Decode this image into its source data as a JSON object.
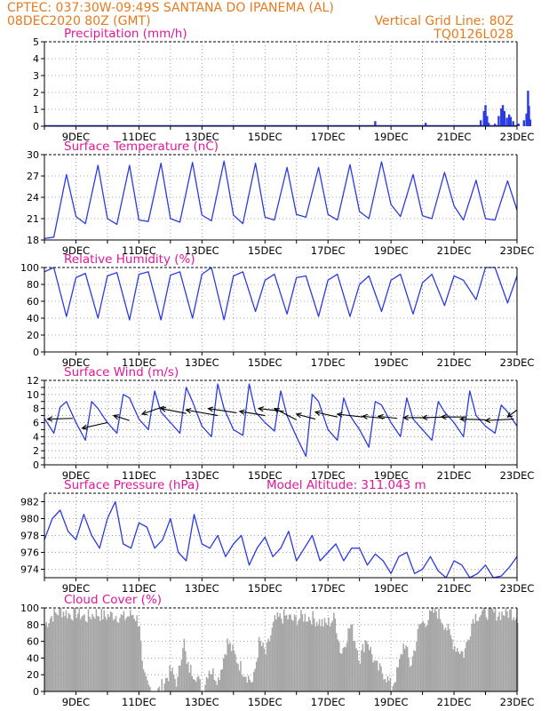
{
  "header": {
    "line1": "CPTEC:   037:30W-09:49S   SANTANA DO IPANEMA (AL)",
    "line2_left": "08DEC2020 80Z (GMT)",
    "line2_right": "Vertical Grid Line: 80Z",
    "line3_right": "TQ0126L028"
  },
  "colors": {
    "header": "#e87a1e",
    "title": "#e0179a",
    "series": "#2a3be0",
    "precip_bar": "#2a3be0",
    "cloud_bar": "#a6a6a6",
    "wind_arrow": "#000000",
    "grid": "#8c8c8c"
  },
  "chart_data": [
    {
      "id": "precip",
      "type": "bar",
      "title": "Precipitation (mm/h)",
      "ylabel": "mm/h",
      "ylim": [
        0,
        5
      ],
      "yticks": [
        "0",
        "1",
        "2",
        "3",
        "4",
        "5"
      ],
      "xlabels": [
        "9DEC",
        "11DEC",
        "13DEC",
        "15DEC",
        "17DEC",
        "19DEC",
        "21DEC",
        "23DEC"
      ],
      "xlim_days": [
        0,
        15
      ],
      "bars": [
        [
          10.5,
          0.3
        ],
        [
          12.1,
          0.2
        ],
        [
          13.85,
          0.35
        ],
        [
          13.95,
          0.9
        ],
        [
          14.0,
          1.25
        ],
        [
          14.05,
          0.6
        ],
        [
          14.1,
          0.2
        ],
        [
          14.3,
          0.15
        ],
        [
          14.42,
          0.6
        ],
        [
          14.5,
          1.05
        ],
        [
          14.55,
          1.25
        ],
        [
          14.6,
          0.9
        ],
        [
          14.68,
          0.5
        ],
        [
          14.75,
          0.7
        ],
        [
          14.8,
          0.55
        ],
        [
          14.88,
          0.3
        ],
        [
          15.05,
          0.15
        ],
        [
          15.22,
          0.35
        ],
        [
          15.3,
          0.75
        ],
        [
          15.35,
          2.1
        ],
        [
          15.38,
          1.2
        ],
        [
          15.42,
          0.4
        ]
      ]
    },
    {
      "id": "temperature",
      "type": "line",
      "title": "Surface Temperature (nC)",
      "ylim": [
        18,
        30
      ],
      "yticks": [
        "18",
        "21",
        "24",
        "27",
        "30"
      ],
      "xlabels": [
        "9DEC",
        "11DEC",
        "13DEC",
        "15DEC",
        "17DEC",
        "19DEC",
        "21DEC",
        "23DEC"
      ],
      "xlim_days": [
        0,
        15
      ],
      "series": [
        {
          "name": "temperature",
          "x": [
            0,
            0.3,
            0.7,
            1.0,
            1.3,
            1.7,
            2.0,
            2.3,
            2.7,
            3.0,
            3.3,
            3.7,
            4.0,
            4.3,
            4.7,
            5.0,
            5.3,
            5.7,
            6.0,
            6.3,
            6.7,
            7.0,
            7.3,
            7.7,
            8.0,
            8.3,
            8.7,
            9.0,
            9.3,
            9.7,
            10.0,
            10.3,
            10.7,
            11.0,
            11.3,
            11.7,
            12.0,
            12.3,
            12.7,
            13.0,
            13.3,
            13.7,
            14.0,
            14.3,
            14.7,
            15.0
          ],
          "y": [
            18.2,
            18.4,
            27.2,
            21.3,
            20.3,
            28.5,
            21.0,
            20.2,
            28.5,
            20.8,
            20.6,
            28.8,
            21.0,
            20.5,
            28.9,
            21.5,
            20.7,
            29.1,
            21.5,
            20.3,
            28.8,
            21.2,
            20.8,
            28.2,
            21.6,
            21.2,
            28.2,
            21.6,
            20.8,
            28.6,
            22.0,
            21.0,
            29.0,
            23.0,
            21.3,
            27.2,
            21.4,
            21.0,
            27.5,
            22.8,
            20.8,
            26.4,
            21.0,
            20.8,
            26.3,
            22.2
          ]
        }
      ]
    },
    {
      "id": "humidity",
      "type": "line",
      "title": "Relative Humidity (%)",
      "ylim": [
        0,
        100
      ],
      "yticks": [
        "0",
        "20",
        "40",
        "60",
        "80",
        "100"
      ],
      "xlabels": [
        "9DEC",
        "11DEC",
        "13DEC",
        "15DEC",
        "17DEC",
        "19DEC",
        "21DEC",
        "23DEC"
      ],
      "xlim_days": [
        0,
        15
      ],
      "series": [
        {
          "name": "humidity",
          "x": [
            0,
            0.3,
            0.7,
            1.0,
            1.3,
            1.7,
            2.0,
            2.3,
            2.7,
            3.0,
            3.3,
            3.7,
            4.0,
            4.3,
            4.7,
            5.0,
            5.3,
            5.7,
            6.0,
            6.3,
            6.7,
            7.0,
            7.3,
            7.7,
            8.0,
            8.3,
            8.7,
            9.0,
            9.3,
            9.7,
            10.0,
            10.3,
            10.7,
            11.0,
            11.3,
            11.7,
            12.0,
            12.3,
            12.7,
            13.0,
            13.3,
            13.7,
            14.0,
            14.3,
            14.7,
            15.0
          ],
          "y": [
            95,
            100,
            42,
            88,
            93,
            40,
            90,
            94,
            38,
            92,
            95,
            38,
            91,
            95,
            40,
            92,
            100,
            38,
            90,
            95,
            48,
            85,
            92,
            45,
            88,
            90,
            42,
            85,
            92,
            42,
            80,
            90,
            48,
            85,
            92,
            45,
            82,
            92,
            55,
            90,
            85,
            62,
            100,
            100,
            58,
            90
          ]
        }
      ]
    },
    {
      "id": "wind",
      "type": "line",
      "title": "Surface Wind (m/s)",
      "ylim": [
        0,
        12
      ],
      "yticks": [
        "0",
        "1",
        "2",
        "3",
        "4",
        "5",
        "6",
        "7",
        "8",
        "9",
        "10",
        "11",
        "12"
      ],
      "ytick_labels_shown": [
        "0",
        "2",
        "4",
        "6",
        "8",
        "10",
        "12"
      ],
      "xlabels": [
        "9DEC",
        "11DEC",
        "13DEC",
        "15DEC",
        "17DEC",
        "19DEC",
        "21DEC",
        "23DEC"
      ],
      "xlim_days": [
        0,
        15
      ],
      "series": [
        {
          "name": "wind speed",
          "x": [
            0,
            0.3,
            0.5,
            0.7,
            1.0,
            1.3,
            1.5,
            1.7,
            2.0,
            2.3,
            2.5,
            2.7,
            3.0,
            3.3,
            3.5,
            3.7,
            4.0,
            4.3,
            4.5,
            4.7,
            5.0,
            5.3,
            5.5,
            5.7,
            6.0,
            6.3,
            6.5,
            6.7,
            7.0,
            7.3,
            7.5,
            7.7,
            8.0,
            8.3,
            8.5,
            8.7,
            9.0,
            9.3,
            9.5,
            9.7,
            10.0,
            10.3,
            10.5,
            10.7,
            11.0,
            11.3,
            11.5,
            11.7,
            12.0,
            12.3,
            12.5,
            12.7,
            13.0,
            13.3,
            13.5,
            13.7,
            14.0,
            14.3,
            14.5,
            14.7,
            15.0
          ],
          "y": [
            6.6,
            4.5,
            8.2,
            9.0,
            6.0,
            3.5,
            9.0,
            8.0,
            6.0,
            4.5,
            10.0,
            9.5,
            6.5,
            5.0,
            10.5,
            7.5,
            6.0,
            4.5,
            11.0,
            9.0,
            5.5,
            4.0,
            11.5,
            8.0,
            5.0,
            4.2,
            11.5,
            7.5,
            6.0,
            4.8,
            10.5,
            7.0,
            4.0,
            1.2,
            10.0,
            9.0,
            5.0,
            3.5,
            9.5,
            7.0,
            5.0,
            2.5,
            9.0,
            8.5,
            6.0,
            4.0,
            9.5,
            6.5,
            5.0,
            3.5,
            9.0,
            7.5,
            6.0,
            4.0,
            10.5,
            7.0,
            5.5,
            4.5,
            8.5,
            7.5,
            5.5
          ]
        }
      ],
      "wind_arrows": [
        [
          0.1,
          6.5,
          0.9,
          6.6
        ],
        [
          1.2,
          5.2,
          2.0,
          6.0
        ],
        [
          2.2,
          7.0,
          2.7,
          6.3
        ],
        [
          3.1,
          7.2,
          3.8,
          8.3
        ],
        [
          3.7,
          8.0,
          4.5,
          7.3
        ],
        [
          4.5,
          7.8,
          5.5,
          7.0
        ],
        [
          5.2,
          8.0,
          6.1,
          7.4
        ],
        [
          6.2,
          7.6,
          7.0,
          7.0
        ],
        [
          6.8,
          8.0,
          7.6,
          7.6
        ],
        [
          7.3,
          8.0,
          8.0,
          6.4
        ],
        [
          8.0,
          7.2,
          8.6,
          6.5
        ],
        [
          8.6,
          7.5,
          9.3,
          6.8
        ],
        [
          9.3,
          7.2,
          10.1,
          6.8
        ],
        [
          10.1,
          6.9,
          10.8,
          6.6
        ],
        [
          10.6,
          6.9,
          11.2,
          6.6
        ],
        [
          11.4,
          6.7,
          12.2,
          6.7
        ],
        [
          12.0,
          6.7,
          12.8,
          6.8
        ],
        [
          12.6,
          6.8,
          13.4,
          6.8
        ],
        [
          13.2,
          6.5,
          14.0,
          6.4
        ],
        [
          14.0,
          6.3,
          14.9,
          6.5
        ],
        [
          14.7,
          6.8,
          15.0,
          7.8
        ]
      ]
    },
    {
      "id": "pressure",
      "type": "line",
      "title": "Surface Pressure (hPa)",
      "subtitle": "Model Altitude: 311.043 m",
      "ylim": [
        973,
        983
      ],
      "yticks": [
        "974",
        "976",
        "978",
        "980",
        "982"
      ],
      "xlabels": [
        "9DEC",
        "11DEC",
        "13DEC",
        "15DEC",
        "17DEC",
        "19DEC",
        "21DEC",
        "23DEC"
      ],
      "xlim_days": [
        0,
        15
      ],
      "series": [
        {
          "name": "pressure",
          "x": [
            0,
            0.25,
            0.5,
            0.75,
            1.0,
            1.25,
            1.5,
            1.75,
            2.0,
            2.25,
            2.5,
            2.75,
            3.0,
            3.25,
            3.5,
            3.75,
            4.0,
            4.25,
            4.5,
            4.75,
            5.0,
            5.25,
            5.5,
            5.75,
            6.0,
            6.25,
            6.5,
            6.75,
            7.0,
            7.25,
            7.5,
            7.75,
            8.0,
            8.25,
            8.5,
            8.75,
            9.0,
            9.25,
            9.5,
            9.75,
            10.0,
            10.25,
            10.5,
            10.75,
            11.0,
            11.25,
            11.5,
            11.75,
            12.0,
            12.25,
            12.5,
            12.75,
            13.0,
            13.25,
            13.5,
            13.75,
            14.0,
            14.25,
            14.5,
            14.75,
            15.0
          ],
          "y": [
            977.5,
            980.0,
            981.0,
            978.5,
            977.5,
            980.5,
            978.0,
            976.5,
            980.0,
            982.0,
            977.0,
            976.5,
            979.5,
            979.0,
            976.5,
            977.5,
            980.0,
            976.0,
            975.0,
            980.5,
            977.0,
            976.5,
            978.0,
            975.5,
            977.0,
            978.0,
            974.5,
            976.5,
            977.8,
            975.5,
            976.5,
            978.5,
            975.0,
            976.5,
            978.0,
            975.0,
            976.0,
            977.0,
            975.0,
            976.5,
            976.5,
            974.5,
            975.8,
            975.0,
            973.5,
            975.5,
            976.0,
            973.5,
            974.0,
            975.5,
            973.8,
            973.0,
            975.0,
            974.5,
            973.0,
            973.5,
            974.5,
            973.0,
            973.2,
            974.2,
            975.5
          ]
        }
      ]
    },
    {
      "id": "cloud",
      "type": "bar",
      "title": "Cloud Cover (%)",
      "ylim": [
        0,
        100
      ],
      "yticks": [
        "0",
        "20",
        "40",
        "60",
        "80",
        "100"
      ],
      "xlabels": [
        "9DEC",
        "11DEC",
        "13DEC",
        "15DEC",
        "17DEC",
        "19DEC",
        "21DEC",
        "23DEC"
      ],
      "xlim_days": [
        0,
        15
      ],
      "profile": [
        [
          0,
          80
        ],
        [
          0.2,
          90
        ],
        [
          0.5,
          97
        ],
        [
          0.8,
          92
        ],
        [
          1.0,
          95
        ],
        [
          1.3,
          88
        ],
        [
          1.6,
          94
        ],
        [
          1.9,
          90
        ],
        [
          2.2,
          92
        ],
        [
          2.5,
          88
        ],
        [
          2.8,
          93
        ],
        [
          3.0,
          82
        ],
        [
          3.1,
          20
        ],
        [
          3.3,
          5
        ],
        [
          3.6,
          0
        ],
        [
          4.0,
          25
        ],
        [
          4.2,
          10
        ],
        [
          4.4,
          65
        ],
        [
          4.5,
          30
        ],
        [
          4.8,
          20
        ],
        [
          5.0,
          0
        ],
        [
          5.2,
          28
        ],
        [
          5.5,
          15
        ],
        [
          5.8,
          60
        ],
        [
          6.0,
          45
        ],
        [
          6.2,
          30
        ],
        [
          6.4,
          20
        ],
        [
          6.6,
          10
        ],
        [
          6.8,
          60
        ],
        [
          7.0,
          45
        ],
        [
          7.3,
          85
        ],
        [
          7.6,
          90
        ],
        [
          7.9,
          85
        ],
        [
          8.2,
          90
        ],
        [
          8.5,
          88
        ],
        [
          8.9,
          80
        ],
        [
          9.2,
          88
        ],
        [
          9.4,
          45
        ],
        [
          9.7,
          80
        ],
        [
          10.0,
          40
        ],
        [
          10.2,
          65
        ],
        [
          10.5,
          30
        ],
        [
          10.8,
          20
        ],
        [
          11.0,
          5
        ],
        [
          11.2,
          25
        ],
        [
          11.4,
          60
        ],
        [
          11.6,
          30
        ],
        [
          11.9,
          80
        ],
        [
          12.1,
          85
        ],
        [
          12.4,
          98
        ],
        [
          12.7,
          80
        ],
        [
          13.0,
          55
        ],
        [
          13.3,
          45
        ],
        [
          13.6,
          90
        ],
        [
          14.0,
          95
        ],
        [
          14.4,
          93
        ],
        [
          14.8,
          95
        ],
        [
          15.0,
          90
        ]
      ]
    }
  ]
}
